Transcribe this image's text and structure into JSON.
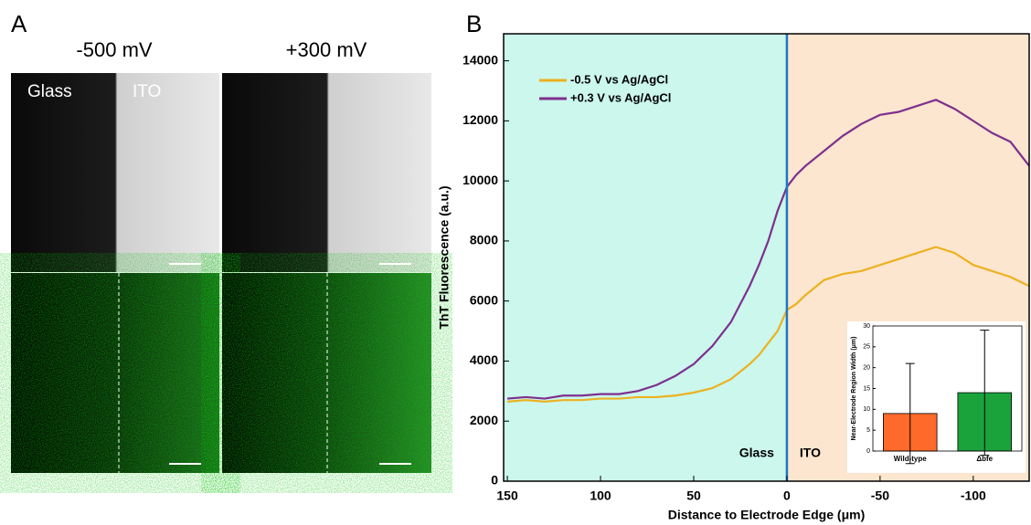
{
  "labels": {
    "a": "A",
    "b": "B"
  },
  "panel_a": {
    "columns": [
      "-500 mV",
      "+300 mV"
    ],
    "region_labels": [
      "Glass",
      "ITO"
    ]
  },
  "chart_data": [
    {
      "type": "line",
      "xlabel": "Distance to Electrode Edge (μm)",
      "ylabel": "ThT Fluorescence (a.u.)",
      "x": [
        150,
        140,
        130,
        120,
        110,
        100,
        90,
        80,
        70,
        60,
        50,
        40,
        30,
        20,
        15,
        10,
        5,
        0,
        -5,
        -10,
        -20,
        -30,
        -40,
        -50,
        -60,
        -70,
        -80,
        -90,
        -100,
        -110,
        -120,
        -130
      ],
      "series": [
        {
          "name": "-0.5 V vs Ag/AgCl",
          "color": "#edb120",
          "values": [
            2650,
            2700,
            2650,
            2700,
            2700,
            2750,
            2750,
            2800,
            2800,
            2850,
            2950,
            3100,
            3400,
            3900,
            4200,
            4600,
            5000,
            5700,
            5900,
            6200,
            6700,
            6900,
            7000,
            7200,
            7400,
            7600,
            7800,
            7600,
            7200,
            7000,
            6800,
            6500
          ]
        },
        {
          "name": "+0.3 V vs Ag/AgCl",
          "color": "#7e2f8e",
          "values": [
            2750,
            2800,
            2750,
            2850,
            2850,
            2900,
            2900,
            3000,
            3200,
            3500,
            3900,
            4500,
            5300,
            6500,
            7200,
            8000,
            9000,
            9800,
            10200,
            10500,
            11000,
            11500,
            11900,
            12200,
            12300,
            12500,
            12700,
            12400,
            12000,
            11600,
            11300,
            10500
          ]
        }
      ],
      "xlim": [
        152,
        -130
      ],
      "ylim": [
        0,
        14900
      ],
      "xticks": [
        150,
        100,
        50,
        0,
        -50,
        -100
      ],
      "yticks": [
        0,
        2000,
        4000,
        6000,
        8000,
        10000,
        12000,
        14000
      ],
      "regions": [
        {
          "label": "Glass",
          "color": "#cbf7ec"
        },
        {
          "label": "ITO",
          "color": "#fce6cf"
        }
      ],
      "divider_x": 0,
      "divider_color": "#1f77c4"
    },
    {
      "type": "bar",
      "ylabel": "Near-Electrode Region Width (μm)",
      "categories": [
        "Wild-type",
        "Δbfe"
      ],
      "values": [
        9,
        14
      ],
      "errors": [
        12,
        15
      ],
      "colors": [
        "#ff6a2a",
        "#1aa33a"
      ],
      "ylim": [
        0,
        30
      ],
      "yticks": [
        0,
        5,
        10,
        15,
        20,
        25,
        30
      ]
    }
  ]
}
